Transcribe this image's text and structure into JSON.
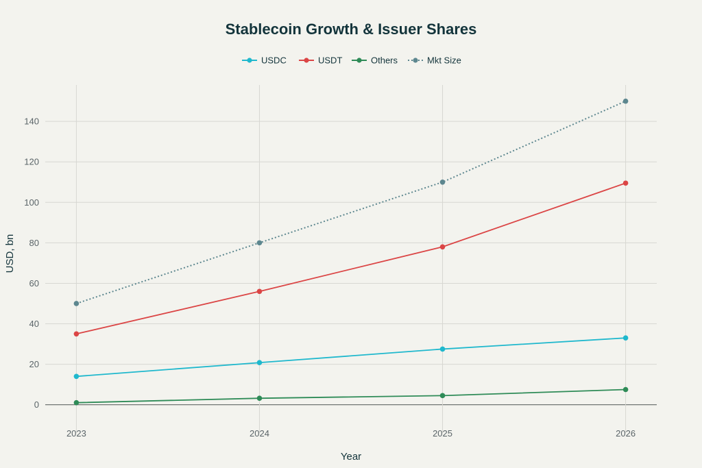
{
  "chart_data": {
    "type": "line",
    "title": "Stablecoin Growth & Issuer Shares",
    "xlabel": "Year",
    "ylabel": "USD, bn",
    "x": [
      "2023",
      "2024",
      "2025",
      "2026"
    ],
    "xlim": [
      2022.83,
      2026.17
    ],
    "ylim": [
      -14,
      158
    ],
    "yticks": [
      0,
      20,
      40,
      60,
      80,
      100,
      120,
      140
    ],
    "grid": true,
    "legend_position": "top-center",
    "series": [
      {
        "name": "USDC",
        "values": [
          14,
          20.8,
          27.5,
          33
        ],
        "color": "#1fb8cd",
        "dash": "solid"
      },
      {
        "name": "USDT",
        "values": [
          35,
          56,
          78,
          109.5
        ],
        "color": "#db4545",
        "dash": "solid"
      },
      {
        "name": "Others",
        "values": [
          1,
          3.2,
          4.5,
          7.5
        ],
        "color": "#2e8b57",
        "dash": "solid"
      },
      {
        "name": "Mkt Size",
        "values": [
          50,
          80,
          110,
          150
        ],
        "color": "#5d878f",
        "dash": "dotted"
      }
    ]
  }
}
